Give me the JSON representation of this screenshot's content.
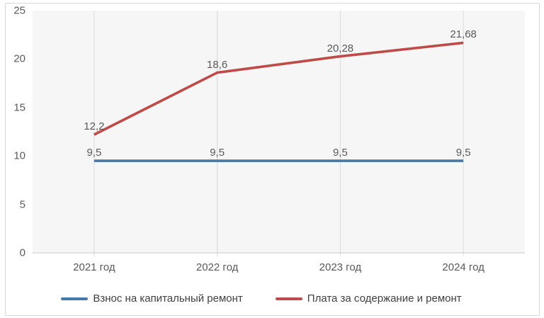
{
  "chart_data": {
    "type": "line",
    "title": "",
    "xlabel": "",
    "ylabel": "",
    "categories": [
      "2021 год",
      "2022 год",
      "2023 год",
      "2024 год"
    ],
    "series": [
      {
        "name": "Взнос на капитальный ремонт",
        "values": [
          9.5,
          9.5,
          9.5,
          9.5
        ],
        "labels": [
          "9,5",
          "9,5",
          "9,5",
          "9,5"
        ],
        "color": "#4878a8"
      },
      {
        "name": "Плата за содержание и ремонт",
        "values": [
          12.2,
          18.6,
          20.28,
          21.68
        ],
        "labels": [
          "12,2",
          "18,6",
          "20,28",
          "21,68"
        ],
        "color": "#be4b48"
      }
    ],
    "ylim": [
      0,
      25
    ],
    "yticks": [
      0,
      5,
      10,
      15,
      20,
      25
    ],
    "ytick_labels": [
      "0",
      "5",
      "10",
      "15",
      "20",
      "25"
    ],
    "grid": "vertical-only",
    "legend_position": "bottom"
  },
  "styles": {
    "background": "#ffffff",
    "frame_border_color": "#d7d7d7",
    "plot_fill": "#f6f6f7",
    "gridline_color": "#d9d9d9",
    "axis_line_color": "#c8c8c8",
    "tick_text_color": "#595959",
    "data_label_color": "#595959",
    "legend_text_color": "#404040"
  }
}
